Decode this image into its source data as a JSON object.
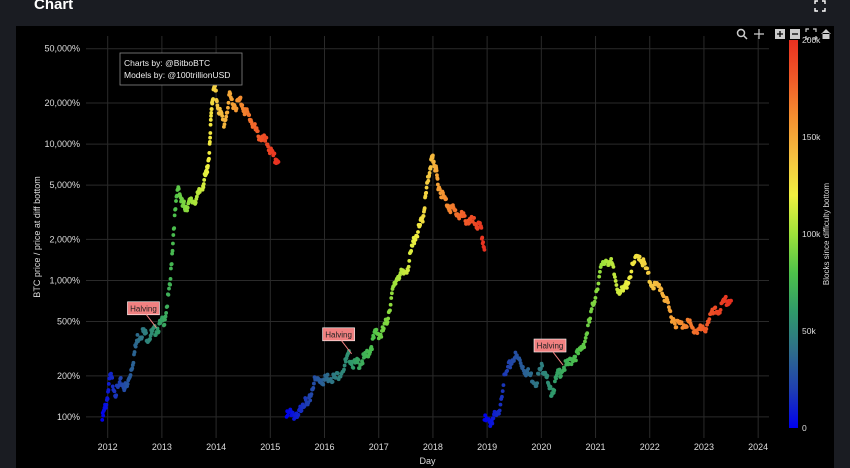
{
  "header": {
    "title": "Chart"
  },
  "icons": {
    "expand": "expand-icon",
    "zoom": "zoom-in-icon",
    "pan": "pan-icon",
    "zoom_in": "plus-box-icon",
    "zoom_out": "minus-box-icon",
    "autoscale": "autoscale-icon",
    "home": "home-icon"
  },
  "chart_data": {
    "type": "scatter",
    "title": "",
    "xlabel": "Day",
    "ylabel": "BTC price / price at diff bottom",
    "yscale": "log",
    "xlim": [
      2011.6,
      2024.2
    ],
    "ylim": [
      70,
      62000
    ],
    "xticks": [
      "2012",
      "2013",
      "2014",
      "2015",
      "2016",
      "2017",
      "2018",
      "2019",
      "2020",
      "2021",
      "2022",
      "2023",
      "2024"
    ],
    "yticks": [
      {
        "v": 100,
        "label": "100%"
      },
      {
        "v": 200,
        "label": "200%"
      },
      {
        "v": 500,
        "label": "500%"
      },
      {
        "v": 1000,
        "label": "1,000%"
      },
      {
        "v": 2000,
        "label": "2,000%"
      },
      {
        "v": 5000,
        "label": "5,000%"
      },
      {
        "v": 10000,
        "label": "10,000%"
      },
      {
        "v": 20000,
        "label": "20,000%"
      },
      {
        "v": 50000,
        "label": "50,000%"
      }
    ],
    "grid": true,
    "colorbar": {
      "title": "Blocks since difficulty bottom",
      "min": 0,
      "max": 200000,
      "ticks": [
        {
          "v": 0,
          "label": "0"
        },
        {
          "v": 50000,
          "label": "50k"
        },
        {
          "v": 100000,
          "label": "100k"
        },
        {
          "v": 150000,
          "label": "150k"
        },
        {
          "v": 200000,
          "label": "200k"
        }
      ],
      "colors": [
        "#0000ee",
        "#1f3fb0",
        "#2e6e8a",
        "#2f9a6a",
        "#4ec24a",
        "#9ee23a",
        "#f0f040",
        "#f5c040",
        "#f59030",
        "#f05a28",
        "#e83020"
      ]
    },
    "annotation_box": {
      "lines": [
        "Charts by: @BitboBTC",
        "Models by: @100trillionUSD"
      ]
    },
    "halvings": [
      {
        "label": "Halving",
        "x": 2012.9,
        "y": 450
      },
      {
        "label": "Halving",
        "x": 2016.5,
        "y": 290
      },
      {
        "label": "Halving",
        "x": 2020.4,
        "y": 240
      }
    ],
    "cycles": [
      {
        "name": "",
        "blocks_start": 0,
        "blocks_end": 200000,
        "points": [
          [
            2011.9,
            95
          ],
          [
            2011.98,
            130
          ],
          [
            2012.05,
            200
          ],
          [
            2012.15,
            150
          ],
          [
            2012.25,
            180
          ],
          [
            2012.35,
            160
          ],
          [
            2012.45,
            240
          ],
          [
            2012.55,
            380
          ],
          [
            2012.65,
            420
          ],
          [
            2012.75,
            380
          ],
          [
            2012.85,
            420
          ],
          [
            2012.95,
            460
          ],
          [
            2013.05,
            520
          ],
          [
            2013.15,
            900
          ],
          [
            2013.22,
            2500
          ],
          [
            2013.3,
            5000
          ],
          [
            2013.38,
            3500
          ],
          [
            2013.45,
            3500
          ],
          [
            2013.55,
            3800
          ],
          [
            2013.65,
            4000
          ],
          [
            2013.75,
            5000
          ],
          [
            2013.82,
            6000
          ],
          [
            2013.88,
            9000
          ],
          [
            2013.92,
            20000
          ],
          [
            2013.97,
            26000
          ],
          [
            2014.05,
            18000
          ],
          [
            2014.15,
            14000
          ],
          [
            2014.25,
            22000
          ],
          [
            2014.35,
            19000
          ],
          [
            2014.45,
            21000
          ],
          [
            2014.55,
            17000
          ],
          [
            2014.65,
            15000
          ],
          [
            2014.75,
            12000
          ],
          [
            2014.85,
            11000
          ],
          [
            2014.95,
            10000
          ],
          [
            2015.05,
            8000
          ],
          [
            2015.15,
            7500
          ]
        ]
      },
      {
        "name": "",
        "blocks_start": 0,
        "blocks_end": 200000,
        "points": [
          [
            2015.3,
            100
          ],
          [
            2015.4,
            110
          ],
          [
            2015.5,
            95
          ],
          [
            2015.6,
            130
          ],
          [
            2015.7,
            120
          ],
          [
            2015.8,
            180
          ],
          [
            2015.9,
            190
          ],
          [
            2016.0,
            185
          ],
          [
            2016.1,
            200
          ],
          [
            2016.2,
            190
          ],
          [
            2016.35,
            230
          ],
          [
            2016.45,
            280
          ],
          [
            2016.55,
            240
          ],
          [
            2016.65,
            250
          ],
          [
            2016.75,
            270
          ],
          [
            2016.85,
            320
          ],
          [
            2016.95,
            420
          ],
          [
            2017.05,
            400
          ],
          [
            2017.15,
            500
          ],
          [
            2017.25,
            800
          ],
          [
            2017.35,
            1100
          ],
          [
            2017.45,
            1100
          ],
          [
            2017.55,
            1300
          ],
          [
            2017.65,
            2000
          ],
          [
            2017.75,
            2400
          ],
          [
            2017.82,
            3000
          ],
          [
            2017.88,
            4500
          ],
          [
            2017.95,
            7000
          ],
          [
            2018.0,
            8000
          ],
          [
            2018.05,
            6500
          ],
          [
            2018.1,
            5000
          ],
          [
            2018.2,
            4000
          ],
          [
            2018.3,
            3500
          ],
          [
            2018.4,
            3200
          ],
          [
            2018.5,
            3000
          ],
          [
            2018.6,
            2800
          ],
          [
            2018.7,
            2700
          ],
          [
            2018.8,
            2600
          ],
          [
            2018.88,
            2400
          ],
          [
            2018.95,
            1700
          ]
        ]
      },
      {
        "name": "",
        "blocks_start": 0,
        "blocks_end": 200000,
        "points": [
          [
            2018.95,
            95
          ],
          [
            2019.05,
            90
          ],
          [
            2019.12,
            100
          ],
          [
            2019.2,
            100
          ],
          [
            2019.3,
            180
          ],
          [
            2019.4,
            230
          ],
          [
            2019.5,
            280
          ],
          [
            2019.6,
            260
          ],
          [
            2019.7,
            220
          ],
          [
            2019.8,
            200
          ],
          [
            2019.9,
            180
          ],
          [
            2020.0,
            230
          ],
          [
            2020.08,
            220
          ],
          [
            2020.15,
            150
          ],
          [
            2020.22,
            160
          ],
          [
            2020.3,
            200
          ],
          [
            2020.4,
            230
          ],
          [
            2020.5,
            240
          ],
          [
            2020.6,
            280
          ],
          [
            2020.7,
            290
          ],
          [
            2020.8,
            360
          ],
          [
            2020.9,
            520
          ],
          [
            2021.0,
            800
          ],
          [
            2021.1,
            1200
          ],
          [
            2021.2,
            1450
          ],
          [
            2021.3,
            1300
          ],
          [
            2021.4,
            900
          ],
          [
            2021.5,
            800
          ],
          [
            2021.6,
            1000
          ],
          [
            2021.7,
            1300
          ],
          [
            2021.8,
            1550
          ],
          [
            2021.9,
            1300
          ],
          [
            2022.0,
            1000
          ],
          [
            2022.1,
            900
          ],
          [
            2022.2,
            900
          ],
          [
            2022.3,
            700
          ],
          [
            2022.4,
            550
          ],
          [
            2022.5,
            480
          ],
          [
            2022.6,
            470
          ],
          [
            2022.7,
            500
          ],
          [
            2022.8,
            430
          ],
          [
            2022.9,
            440
          ],
          [
            2023.0,
            420
          ],
          [
            2023.1,
            540
          ],
          [
            2023.2,
            580
          ],
          [
            2023.3,
            620
          ],
          [
            2023.4,
            700
          ],
          [
            2023.5,
            720
          ]
        ]
      }
    ]
  }
}
